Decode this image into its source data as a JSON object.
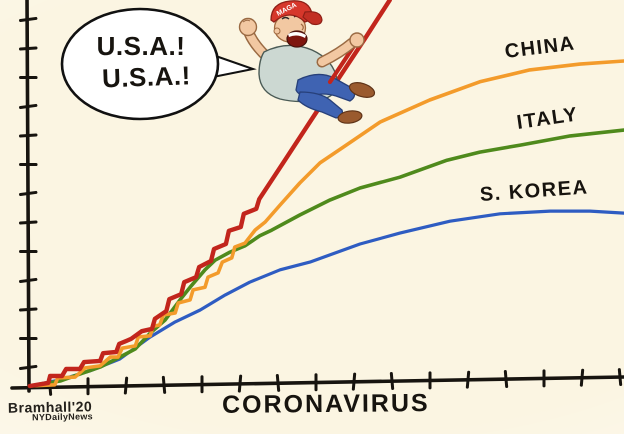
{
  "speech_bubble": {
    "line1": "U.S.A.!",
    "line2": "U.S.A.!"
  },
  "character": {
    "hat_text": "MAGA"
  },
  "signature": {
    "artist": "Bramhall'20",
    "publication": "NYDailyNews"
  },
  "colors": {
    "background": "#fbf5e2",
    "axis_ink": "#17140f",
    "usa_red": "#c2251c",
    "china_orange": "#f39b2b",
    "italy_green": "#4f8a1c",
    "korea_blue": "#2e5cc2",
    "bubble_fill": "#ffffff",
    "cap_red": "#d6372b",
    "shirt_gray": "#ccd8d2",
    "jeans_blue": "#3f63b2",
    "shoe_brown": "#9a5a2e",
    "skin": "#f2c8a2"
  },
  "chart_data": {
    "type": "line",
    "title": "",
    "xlabel": "CORONAVIRUS",
    "ylabel": "",
    "grid": false,
    "legend_position": "inline-labels-on-curves",
    "x_axis": {
      "numeric_labels": false,
      "tick_count": 16
    },
    "y_axis": {
      "numeric_labels": false,
      "tick_count": 13
    },
    "value_scale_note": "unlabeled axes; values normalized 0-100 of plot extents",
    "series": [
      {
        "name": "U.S.A.",
        "label_on_chart": false,
        "color": "#c2251c",
        "points": [
          [
            0.3,
            0
          ],
          [
            3.4,
            0.8
          ],
          [
            3.7,
            2.6
          ],
          [
            5.7,
            2.6
          ],
          [
            6.4,
            4.4
          ],
          [
            8.7,
            4.4
          ],
          [
            9.4,
            6.2
          ],
          [
            12.1,
            6.5
          ],
          [
            12.6,
            8.5
          ],
          [
            14.8,
            8.8
          ],
          [
            15.3,
            10.9
          ],
          [
            17.3,
            12.2
          ],
          [
            19.1,
            14.2
          ],
          [
            20.8,
            14.8
          ],
          [
            21.3,
            17.4
          ],
          [
            23.2,
            19.4
          ],
          [
            23.7,
            22.5
          ],
          [
            25.7,
            23.8
          ],
          [
            26.2,
            26.9
          ],
          [
            28.2,
            28.2
          ],
          [
            28.7,
            30.8
          ],
          [
            30.7,
            32.4
          ],
          [
            31.2,
            35.5
          ],
          [
            33.2,
            36.8
          ],
          [
            33.7,
            40.2
          ],
          [
            35.7,
            41.2
          ],
          [
            36.2,
            44.6
          ],
          [
            38.3,
            45.9
          ],
          [
            38.8,
            48.4
          ],
          [
            43.1,
            58.5
          ],
          [
            47.3,
            68.4
          ],
          [
            52.3,
            80.1
          ],
          [
            56.5,
            89.9
          ],
          [
            60.7,
            100
          ]
        ]
      },
      {
        "name": "CHINA",
        "label_on_chart": true,
        "color": "#f39b2b",
        "points": [
          [
            0.3,
            0
          ],
          [
            4.5,
            0.3
          ],
          [
            5.0,
            2.1
          ],
          [
            7.9,
            2.3
          ],
          [
            9.6,
            4.7
          ],
          [
            12.1,
            5.2
          ],
          [
            13.8,
            7.5
          ],
          [
            15.1,
            7.5
          ],
          [
            15.8,
            9.8
          ],
          [
            18.0,
            10.4
          ],
          [
            18.5,
            12.7
          ],
          [
            20.5,
            13.0
          ],
          [
            21.0,
            15.5
          ],
          [
            22.1,
            15.8
          ],
          [
            22.7,
            18.4
          ],
          [
            24.7,
            18.9
          ],
          [
            25.2,
            21.5
          ],
          [
            27.2,
            22.3
          ],
          [
            27.7,
            24.9
          ],
          [
            29.7,
            25.6
          ],
          [
            30.2,
            28.2
          ],
          [
            31.9,
            29.3
          ],
          [
            32.6,
            32.1
          ],
          [
            34.2,
            33.2
          ],
          [
            34.7,
            36.0
          ],
          [
            36.4,
            37.0
          ],
          [
            38.1,
            40.4
          ],
          [
            39.8,
            42.5
          ],
          [
            42.3,
            46.9
          ],
          [
            45.6,
            52.6
          ],
          [
            49.0,
            57.8
          ],
          [
            52.9,
            61.9
          ],
          [
            59.1,
            68.4
          ],
          [
            67.4,
            74.1
          ],
          [
            75.8,
            78.8
          ],
          [
            84.2,
            81.9
          ],
          [
            92.6,
            83.4
          ],
          [
            100,
            84.2
          ]
        ]
      },
      {
        "name": "ITALY",
        "label_on_chart": true,
        "color": "#4f8a1c",
        "points": [
          [
            0.3,
            0
          ],
          [
            5.4,
            1.3
          ],
          [
            8.7,
            3.1
          ],
          [
            12.1,
            4.9
          ],
          [
            15.4,
            7.5
          ],
          [
            18.0,
            9.6
          ],
          [
            20.5,
            13.7
          ],
          [
            23.0,
            17.1
          ],
          [
            25.5,
            22.3
          ],
          [
            27.2,
            25.6
          ],
          [
            29.7,
            30.1
          ],
          [
            31.4,
            32.6
          ],
          [
            33.9,
            34.7
          ],
          [
            36.4,
            36.3
          ],
          [
            38.9,
            38.9
          ],
          [
            40.9,
            40.4
          ],
          [
            45.6,
            44.3
          ],
          [
            50.7,
            48.2
          ],
          [
            55.7,
            51.3
          ],
          [
            62.4,
            54.1
          ],
          [
            70.3,
            58.5
          ],
          [
            75.8,
            60.6
          ],
          [
            82.6,
            62.4
          ],
          [
            91.0,
            64.8
          ],
          [
            100,
            66.3
          ]
        ]
      },
      {
        "name": "S. KOREA",
        "label_on_chart": true,
        "color": "#2e5cc2",
        "points": [
          [
            0.3,
            0
          ],
          [
            5.4,
            1.6
          ],
          [
            10.4,
            3.9
          ],
          [
            15.4,
            7.0
          ],
          [
            20.5,
            12.7
          ],
          [
            24.7,
            16.6
          ],
          [
            28.9,
            19.7
          ],
          [
            33.1,
            23.6
          ],
          [
            37.2,
            26.9
          ],
          [
            42.3,
            30.1
          ],
          [
            47.3,
            32.1
          ],
          [
            55.7,
            36.8
          ],
          [
            62.4,
            39.6
          ],
          [
            70.8,
            42.7
          ],
          [
            79.2,
            44.6
          ],
          [
            87.6,
            45.3
          ],
          [
            94.3,
            45.3
          ],
          [
            100,
            44.8
          ]
        ]
      }
    ]
  }
}
